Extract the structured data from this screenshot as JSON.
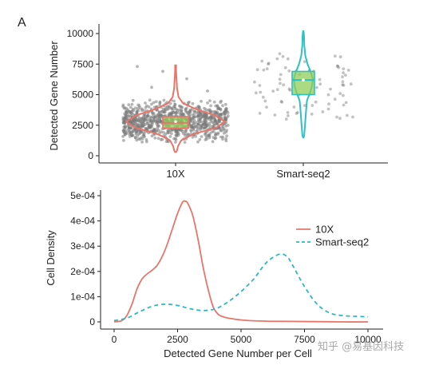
{
  "panel_label": "A",
  "watermark": "知乎 @易基因科技",
  "chart_data": [
    {
      "type": "violin",
      "title": "",
      "xlabel": "",
      "ylabel": "Detected Gene Number",
      "categories": [
        "10X",
        "Smart-seq2"
      ],
      "ylim": [
        0,
        10000
      ],
      "yticks": [
        0,
        2500,
        5000,
        7500,
        10000
      ],
      "ytick_labels": [
        "0",
        "2500",
        "5000",
        "7500",
        "10000"
      ],
      "grid": false,
      "legend": "none",
      "colors": {
        "10X": "#e8756a",
        "Smart-seq2": "#2fc0c4"
      },
      "box_fill": {
        "10X": "#8fce5a",
        "Smart-seq2": "#8fce5a"
      },
      "groups": [
        {
          "name": "10X",
          "min": 300,
          "max": 7400,
          "q1": 2250,
          "median": 2700,
          "q3": 3200,
          "mean": 2800,
          "profile": [
            [
              300,
              0.02
            ],
            [
              800,
              0.05
            ],
            [
              1300,
              0.12
            ],
            [
              1800,
              0.38
            ],
            [
              2300,
              0.82
            ],
            [
              2800,
              1.0
            ],
            [
              3300,
              0.8
            ],
            [
              3800,
              0.42
            ],
            [
              4300,
              0.15
            ],
            [
              4800,
              0.06
            ],
            [
              5500,
              0.03
            ],
            [
              6500,
              0.015
            ],
            [
              7400,
              0.005
            ]
          ],
          "points": 900,
          "points_range": [
            1100,
            4600
          ]
        },
        {
          "name": "Smart-seq2",
          "min": 1500,
          "max": 10200,
          "q1": 5000,
          "median": 6200,
          "q3": 6900,
          "mean": 6200,
          "profile": [
            [
              1500,
              0.05
            ],
            [
              2500,
              0.12
            ],
            [
              3500,
              0.18
            ],
            [
              4500,
              0.25
            ],
            [
              5200,
              0.48
            ],
            [
              5800,
              0.62
            ],
            [
              6300,
              0.66
            ],
            [
              6900,
              0.5
            ],
            [
              7500,
              0.3
            ],
            [
              8200,
              0.14
            ],
            [
              9000,
              0.07
            ],
            [
              9800,
              0.05
            ],
            [
              10200,
              0.02
            ]
          ],
          "points": 80,
          "points_range": [
            2800,
            8400
          ]
        }
      ]
    },
    {
      "type": "line",
      "title": "",
      "xlabel": "Detected Gene Number per Cell",
      "ylabel": "Cell Density",
      "xlim": [
        0,
        10000
      ],
      "ylim": [
        0,
        0.0005
      ],
      "xticks": [
        0,
        2500,
        5000,
        7500,
        10000
      ],
      "xtick_labels": [
        "0",
        "2500",
        "5000",
        "7500",
        "10000"
      ],
      "yticks": [
        0,
        0.0001,
        0.0002,
        0.0003,
        0.0004,
        0.0005
      ],
      "ytick_labels": [
        "0",
        "1e-04",
        "2e-04",
        "3e-04",
        "4e-04",
        "5e-04"
      ],
      "grid": false,
      "legend": "right",
      "series": [
        {
          "name": "10X",
          "color": "#e8756a",
          "dash": "solid",
          "x": [
            0,
            300,
            500,
            700,
            900,
            1100,
            1300,
            1500,
            1700,
            1900,
            2100,
            2300,
            2500,
            2700,
            2800,
            2900,
            3100,
            3300,
            3500,
            3700,
            3900,
            4100,
            4300,
            4500,
            4800,
            5200,
            6000,
            7000,
            8000,
            9000,
            10000
          ],
          "y": [
            0,
            5e-06,
            2.5e-05,
            7e-05,
            0.00013,
            0.00017,
            0.00019,
            0.000205,
            0.000225,
            0.00026,
            0.00031,
            0.00037,
            0.00043,
            0.000475,
            0.000478,
            0.00047,
            0.00042,
            0.00033,
            0.00022,
            0.00013,
            6e-05,
            3e-05,
            2e-05,
            1.5e-05,
            1e-05,
            6e-06,
            3e-06,
            2e-06,
            1e-06,
            0,
            0
          ]
        },
        {
          "name": "Smart-seq2",
          "color": "#2fb7c1",
          "dash": "dashed",
          "x": [
            0,
            500,
            1000,
            1500,
            2000,
            2500,
            3000,
            3500,
            4000,
            4500,
            5000,
            5500,
            6000,
            6500,
            6800,
            7000,
            7500,
            8000,
            8500,
            9000,
            9500,
            10000
          ],
          "y": [
            5e-06,
            1.5e-05,
            4e-05,
            6.2e-05,
            7e-05,
            6.5e-05,
            5.2e-05,
            4.5e-05,
            5.2e-05,
            8e-05,
            0.00012,
            0.00017,
            0.000235,
            0.000268,
            0.00026,
            0.00023,
            0.00014,
            7e-05,
            3.5e-05,
            2.5e-05,
            2.2e-05,
            2e-05
          ]
        }
      ]
    }
  ]
}
